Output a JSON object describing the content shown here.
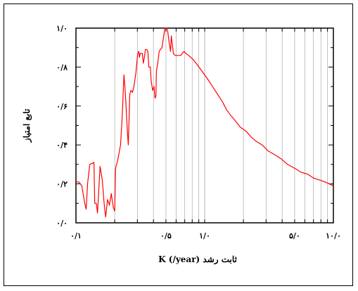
{
  "chart_data": {
    "type": "line",
    "xlabel": "K (/year) ثابت رشد",
    "ylabel": "تابع امتیاز",
    "x_scale": "log",
    "xlim": [
      0.1,
      10.0
    ],
    "ylim": [
      0.0,
      1.0
    ],
    "x_ticks": [
      {
        "value": 0.1,
        "label": "۰/۱"
      },
      {
        "value": 0.5,
        "label": "۰/۵"
      },
      {
        "value": 1.0,
        "label": "۱/۰"
      },
      {
        "value": 5.0,
        "label": "۵/۰"
      },
      {
        "value": 10.0,
        "label": "۱۰/۰"
      }
    ],
    "y_ticks": [
      {
        "value": 0.0,
        "label": "۰/۰"
      },
      {
        "value": 0.2,
        "label": "۰/۲"
      },
      {
        "value": 0.4,
        "label": "۰/۴"
      },
      {
        "value": 0.6,
        "label": "۰/۶"
      },
      {
        "value": 0.8,
        "label": "۰/۸"
      },
      {
        "value": 1.0,
        "label": "۱/۰"
      }
    ],
    "grid": true,
    "series": [
      {
        "color": "#ff0000",
        "points": [
          [
            0.1,
            0.21
          ],
          [
            0.105,
            0.21
          ],
          [
            0.111,
            0.19
          ],
          [
            0.117,
            0.1
          ],
          [
            0.12,
            0.07
          ],
          [
            0.123,
            0.2
          ],
          [
            0.128,
            0.3
          ],
          [
            0.138,
            0.31
          ],
          [
            0.14,
            0.1
          ],
          [
            0.144,
            0.1
          ],
          [
            0.147,
            0.05
          ],
          [
            0.154,
            0.29
          ],
          [
            0.16,
            0.22
          ],
          [
            0.165,
            0.11
          ],
          [
            0.168,
            0.06
          ],
          [
            0.17,
            0.03
          ],
          [
            0.176,
            0.12
          ],
          [
            0.182,
            0.09
          ],
          [
            0.188,
            0.15
          ],
          [
            0.191,
            0.12
          ],
          [
            0.195,
            0.08
          ],
          [
            0.2,
            0.06
          ],
          [
            0.203,
            0.28
          ],
          [
            0.211,
            0.32
          ],
          [
            0.222,
            0.4
          ],
          [
            0.229,
            0.55
          ],
          [
            0.236,
            0.76
          ],
          [
            0.24,
            0.7
          ],
          [
            0.244,
            0.62
          ],
          [
            0.251,
            0.47
          ],
          [
            0.255,
            0.4
          ],
          [
            0.26,
            0.58
          ],
          [
            0.262,
            0.66
          ],
          [
            0.267,
            0.68
          ],
          [
            0.275,
            0.67
          ],
          [
            0.282,
            0.7
          ],
          [
            0.292,
            0.77
          ],
          [
            0.302,
            0.87
          ],
          [
            0.308,
            0.88
          ],
          [
            0.311,
            0.85
          ],
          [
            0.316,
            0.87
          ],
          [
            0.328,
            0.87
          ],
          [
            0.334,
            0.82
          ],
          [
            0.34,
            0.85
          ],
          [
            0.346,
            0.89
          ],
          [
            0.355,
            0.89
          ],
          [
            0.362,
            0.88
          ],
          [
            0.368,
            0.8
          ],
          [
            0.378,
            0.8
          ],
          [
            0.384,
            0.73
          ],
          [
            0.394,
            0.68
          ],
          [
            0.404,
            0.7
          ],
          [
            0.411,
            0.64
          ],
          [
            0.418,
            0.65
          ],
          [
            0.422,
            0.78
          ],
          [
            0.434,
            0.83
          ],
          [
            0.443,
            0.88
          ],
          [
            0.452,
            0.89
          ],
          [
            0.466,
            0.9
          ],
          [
            0.481,
            0.96
          ],
          [
            0.491,
            1.0
          ],
          [
            0.506,
            1.0
          ],
          [
            0.517,
            0.98
          ],
          [
            0.531,
            0.92
          ],
          [
            0.543,
            0.88
          ],
          [
            0.551,
            0.96
          ],
          [
            0.571,
            0.87
          ],
          [
            0.59,
            0.86
          ],
          [
            0.607,
            0.86
          ],
          [
            0.634,
            0.86
          ],
          [
            0.654,
            0.86
          ],
          [
            0.669,
            0.87
          ],
          [
            0.691,
            0.88
          ],
          [
            0.714,
            0.87
          ],
          [
            0.75,
            0.86
          ],
          [
            0.81,
            0.84
          ],
          [
            0.88,
            0.81
          ],
          [
            0.95,
            0.78
          ],
          [
            1.05,
            0.74
          ],
          [
            1.15,
            0.7
          ],
          [
            1.26,
            0.66
          ],
          [
            1.38,
            0.62
          ],
          [
            1.48,
            0.58
          ],
          [
            1.6,
            0.55
          ],
          [
            1.75,
            0.52
          ],
          [
            1.9,
            0.49
          ],
          [
            2.1,
            0.47
          ],
          [
            2.3,
            0.44
          ],
          [
            2.5,
            0.42
          ],
          [
            2.8,
            0.4
          ],
          [
            3.1,
            0.37
          ],
          [
            3.5,
            0.35
          ],
          [
            3.9,
            0.33
          ],
          [
            4.4,
            0.3
          ],
          [
            5.0,
            0.28
          ],
          [
            5.6,
            0.26
          ],
          [
            6.3,
            0.25
          ],
          [
            7.0,
            0.23
          ],
          [
            7.8,
            0.22
          ],
          [
            8.6,
            0.21
          ],
          [
            9.3,
            0.2
          ],
          [
            10.0,
            0.19
          ]
        ]
      }
    ]
  }
}
